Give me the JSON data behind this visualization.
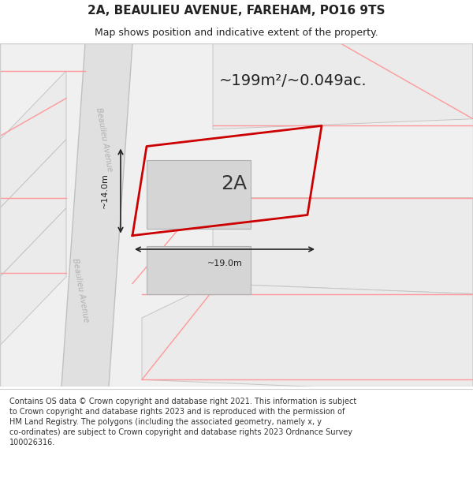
{
  "title_line1": "2A, BEAULIEU AVENUE, FAREHAM, PO16 9TS",
  "title_line2": "Map shows position and indicative extent of the property.",
  "footer_text": "Contains OS data © Crown copyright and database right 2021. This information is subject to Crown copyright and database rights 2023 and is reproduced with the permission of HM Land Registry. The polygons (including the associated geometry, namely x, y co-ordinates) are subject to Crown copyright and database rights 2023 Ordnance Survey 100026316.",
  "area_label": "~199m²/~0.049ac.",
  "plot_label": "2A",
  "dim_width_label": "~19.0m",
  "dim_height_label": "~14.0m",
  "bg_color": "#ffffff",
  "map_bg": "#f5f5f5",
  "road_color": "#e8e8e8",
  "road_stroke": "#cccccc",
  "neighbor_fill": "#e8e8e8",
  "neighbor_stroke": "#cccccc",
  "red_line_color": "#cc0000",
  "pink_line_color": "#ff9999",
  "building_fill": "#d8d8d8",
  "building_stroke": "#aaaaaa",
  "property_fill": "#ffffff",
  "property_stroke": "#cc0000",
  "street_label_color": "#aaaaaa",
  "title_color": "#222222",
  "dim_color": "#222222"
}
